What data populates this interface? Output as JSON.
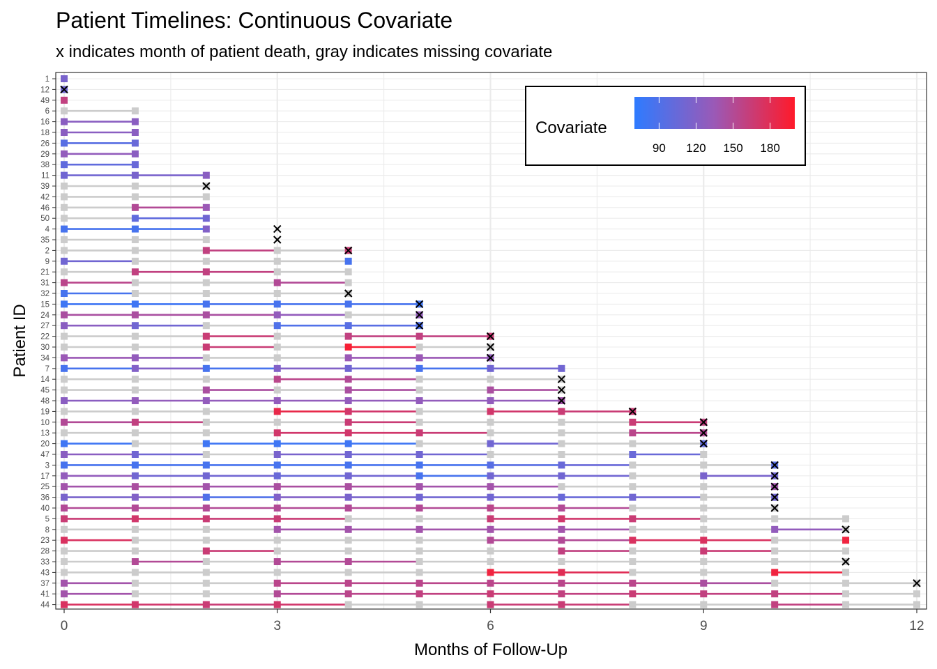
{
  "chart_data": {
    "type": "timeline",
    "title": "Patient Timelines: Continuous Covariate",
    "subtitle": "x indicates month of patient death, gray indicates missing covariate",
    "xlabel": "Months of Follow-Up",
    "ylabel": "Patient ID",
    "xlim": [
      0,
      12
    ],
    "xticks": [
      0,
      3,
      6,
      9,
      12
    ],
    "colors": {
      "low": "#2e7bff",
      "mid": "#9b59b6",
      "high": "#ff1a2a",
      "missing": "#cccccc",
      "grid": "#ebebeb",
      "death_marker": "#000000"
    },
    "legend": {
      "title": "Covariate",
      "position": "top-right",
      "range": [
        70,
        200
      ],
      "ticks": [
        90,
        120,
        150,
        180
      ]
    },
    "patients": [
      {
        "id": "1",
        "death": null,
        "values": [
          115
        ]
      },
      {
        "id": "12",
        "death": 0,
        "values": [
          110
        ]
      },
      {
        "id": "49",
        "death": null,
        "values": [
          160
        ]
      },
      {
        "id": "6",
        "death": null,
        "values": [
          null,
          null
        ]
      },
      {
        "id": "16",
        "death": null,
        "values": [
          125,
          125
        ]
      },
      {
        "id": "18",
        "death": null,
        "values": [
          125,
          125
        ]
      },
      {
        "id": "26",
        "death": null,
        "values": [
          95,
          105
        ]
      },
      {
        "id": "29",
        "death": null,
        "values": [
          130,
          125
        ]
      },
      {
        "id": "38",
        "death": null,
        "values": [
          100,
          105
        ]
      },
      {
        "id": "11",
        "death": null,
        "values": [
          110,
          115,
          125
        ]
      },
      {
        "id": "39",
        "death": 2,
        "values": [
          null,
          null,
          null
        ]
      },
      {
        "id": "42",
        "death": null,
        "values": [
          null,
          null,
          null
        ]
      },
      {
        "id": "46",
        "death": null,
        "values": [
          null,
          150,
          135
        ]
      },
      {
        "id": "50",
        "death": null,
        "values": [
          null,
          100,
          110
        ]
      },
      {
        "id": "4",
        "death": 3,
        "values": [
          85,
          85,
          120
        ]
      },
      {
        "id": "35",
        "death": 3,
        "values": [
          null,
          null,
          null
        ]
      },
      {
        "id": "2",
        "death": 4,
        "values": [
          null,
          null,
          160,
          null,
          165
        ]
      },
      {
        "id": "9",
        "death": null,
        "values": [
          110,
          null,
          null,
          null,
          85
        ]
      },
      {
        "id": "21",
        "death": null,
        "values": [
          null,
          160,
          160,
          null,
          null
        ]
      },
      {
        "id": "31",
        "death": null,
        "values": [
          155,
          null,
          null,
          150,
          null
        ]
      },
      {
        "id": "32",
        "death": 4,
        "values": [
          85,
          null,
          null,
          null,
          null
        ]
      },
      {
        "id": "15",
        "death": 5,
        "values": [
          80,
          80,
          85,
          85,
          85,
          80
        ]
      },
      {
        "id": "24",
        "death": 5,
        "values": [
          145,
          145,
          145,
          130,
          null,
          130
        ]
      },
      {
        "id": "27",
        "death": 5,
        "values": [
          125,
          110,
          null,
          90,
          95,
          90
        ]
      },
      {
        "id": "22",
        "death": 6,
        "values": [
          null,
          null,
          165,
          null,
          160,
          160,
          165
        ]
      },
      {
        "id": "30",
        "death": 6,
        "values": [
          null,
          null,
          165,
          null,
          195,
          null,
          null
        ]
      },
      {
        "id": "34",
        "death": 6,
        "values": [
          135,
          130,
          null,
          null,
          135,
          135,
          130
        ]
      },
      {
        "id": "7",
        "death": null,
        "values": [
          85,
          120,
          85,
          120,
          110,
          85,
          110,
          110
        ]
      },
      {
        "id": "14",
        "death": 7,
        "values": [
          null,
          null,
          null,
          155,
          150,
          null,
          null,
          null
        ]
      },
      {
        "id": "45",
        "death": 7,
        "values": [
          null,
          null,
          145,
          null,
          145,
          null,
          145,
          null
        ]
      },
      {
        "id": "48",
        "death": 7,
        "values": [
          125,
          130,
          130,
          130,
          130,
          130,
          130,
          140
        ]
      },
      {
        "id": "19",
        "death": 8,
        "values": [
          null,
          null,
          null,
          185,
          170,
          null,
          170,
          165,
          165
        ]
      },
      {
        "id": "10",
        "death": 9,
        "values": [
          150,
          160,
          null,
          null,
          165,
          null,
          null,
          null,
          165,
          160
        ]
      },
      {
        "id": "13",
        "death": 9,
        "values": [
          null,
          null,
          null,
          170,
          170,
          165,
          null,
          null,
          155,
          150
        ]
      },
      {
        "id": "20",
        "death": 9,
        "values": [
          80,
          null,
          80,
          80,
          80,
          null,
          110,
          null,
          null,
          100
        ]
      },
      {
        "id": "47",
        "death": null,
        "values": [
          125,
          110,
          null,
          115,
          110,
          110,
          null,
          null,
          105,
          null
        ]
      },
      {
        "id": "3",
        "death": 10,
        "values": [
          85,
          85,
          85,
          85,
          85,
          85,
          95,
          105,
          null,
          null,
          95
        ]
      },
      {
        "id": "17",
        "death": 10,
        "values": [
          130,
          110,
          110,
          105,
          110,
          85,
          110,
          110,
          null,
          115,
          110
        ]
      },
      {
        "id": "25",
        "death": 10,
        "values": [
          140,
          145,
          140,
          145,
          145,
          140,
          140,
          null,
          null,
          null,
          140
        ]
      },
      {
        "id": "36",
        "death": 10,
        "values": [
          115,
          120,
          90,
          120,
          115,
          110,
          110,
          105,
          110,
          null,
          110
        ]
      },
      {
        "id": "40",
        "death": 10,
        "values": [
          150,
          150,
          150,
          150,
          150,
          150,
          155,
          150,
          null,
          null,
          null
        ]
      },
      {
        "id": "5",
        "death": null,
        "values": [
          165,
          170,
          165,
          165,
          null,
          null,
          165,
          170,
          165,
          null,
          null,
          null
        ]
      },
      {
        "id": "8",
        "death": 11,
        "values": [
          null,
          null,
          null,
          140,
          140,
          140,
          140,
          140,
          null,
          null,
          130,
          null
        ]
      },
      {
        "id": "23",
        "death": null,
        "values": [
          175,
          null,
          null,
          null,
          null,
          null,
          150,
          150,
          175,
          175,
          null,
          190
        ]
      },
      {
        "id": "28",
        "death": null,
        "values": [
          null,
          null,
          165,
          null,
          null,
          null,
          null,
          160,
          null,
          165,
          null,
          null
        ]
      },
      {
        "id": "33",
        "death": 11,
        "values": [
          null,
          150,
          null,
          150,
          150,
          null,
          null,
          null,
          null,
          null,
          null,
          null
        ]
      },
      {
        "id": "43",
        "death": null,
        "values": [
          null,
          null,
          null,
          null,
          null,
          null,
          190,
          180,
          null,
          null,
          190,
          null
        ]
      },
      {
        "id": "37",
        "death": 12,
        "values": [
          140,
          null,
          null,
          155,
          155,
          155,
          155,
          155,
          155,
          145,
          null,
          null,
          null
        ]
      },
      {
        "id": "41",
        "death": null,
        "values": [
          140,
          null,
          null,
          150,
          155,
          160,
          165,
          160,
          165,
          160,
          160,
          null,
          null
        ]
      },
      {
        "id": "44",
        "death": null,
        "values": [
          175,
          170,
          165,
          170,
          null,
          null,
          165,
          165,
          null,
          null,
          160,
          null,
          null
        ]
      }
    ]
  }
}
